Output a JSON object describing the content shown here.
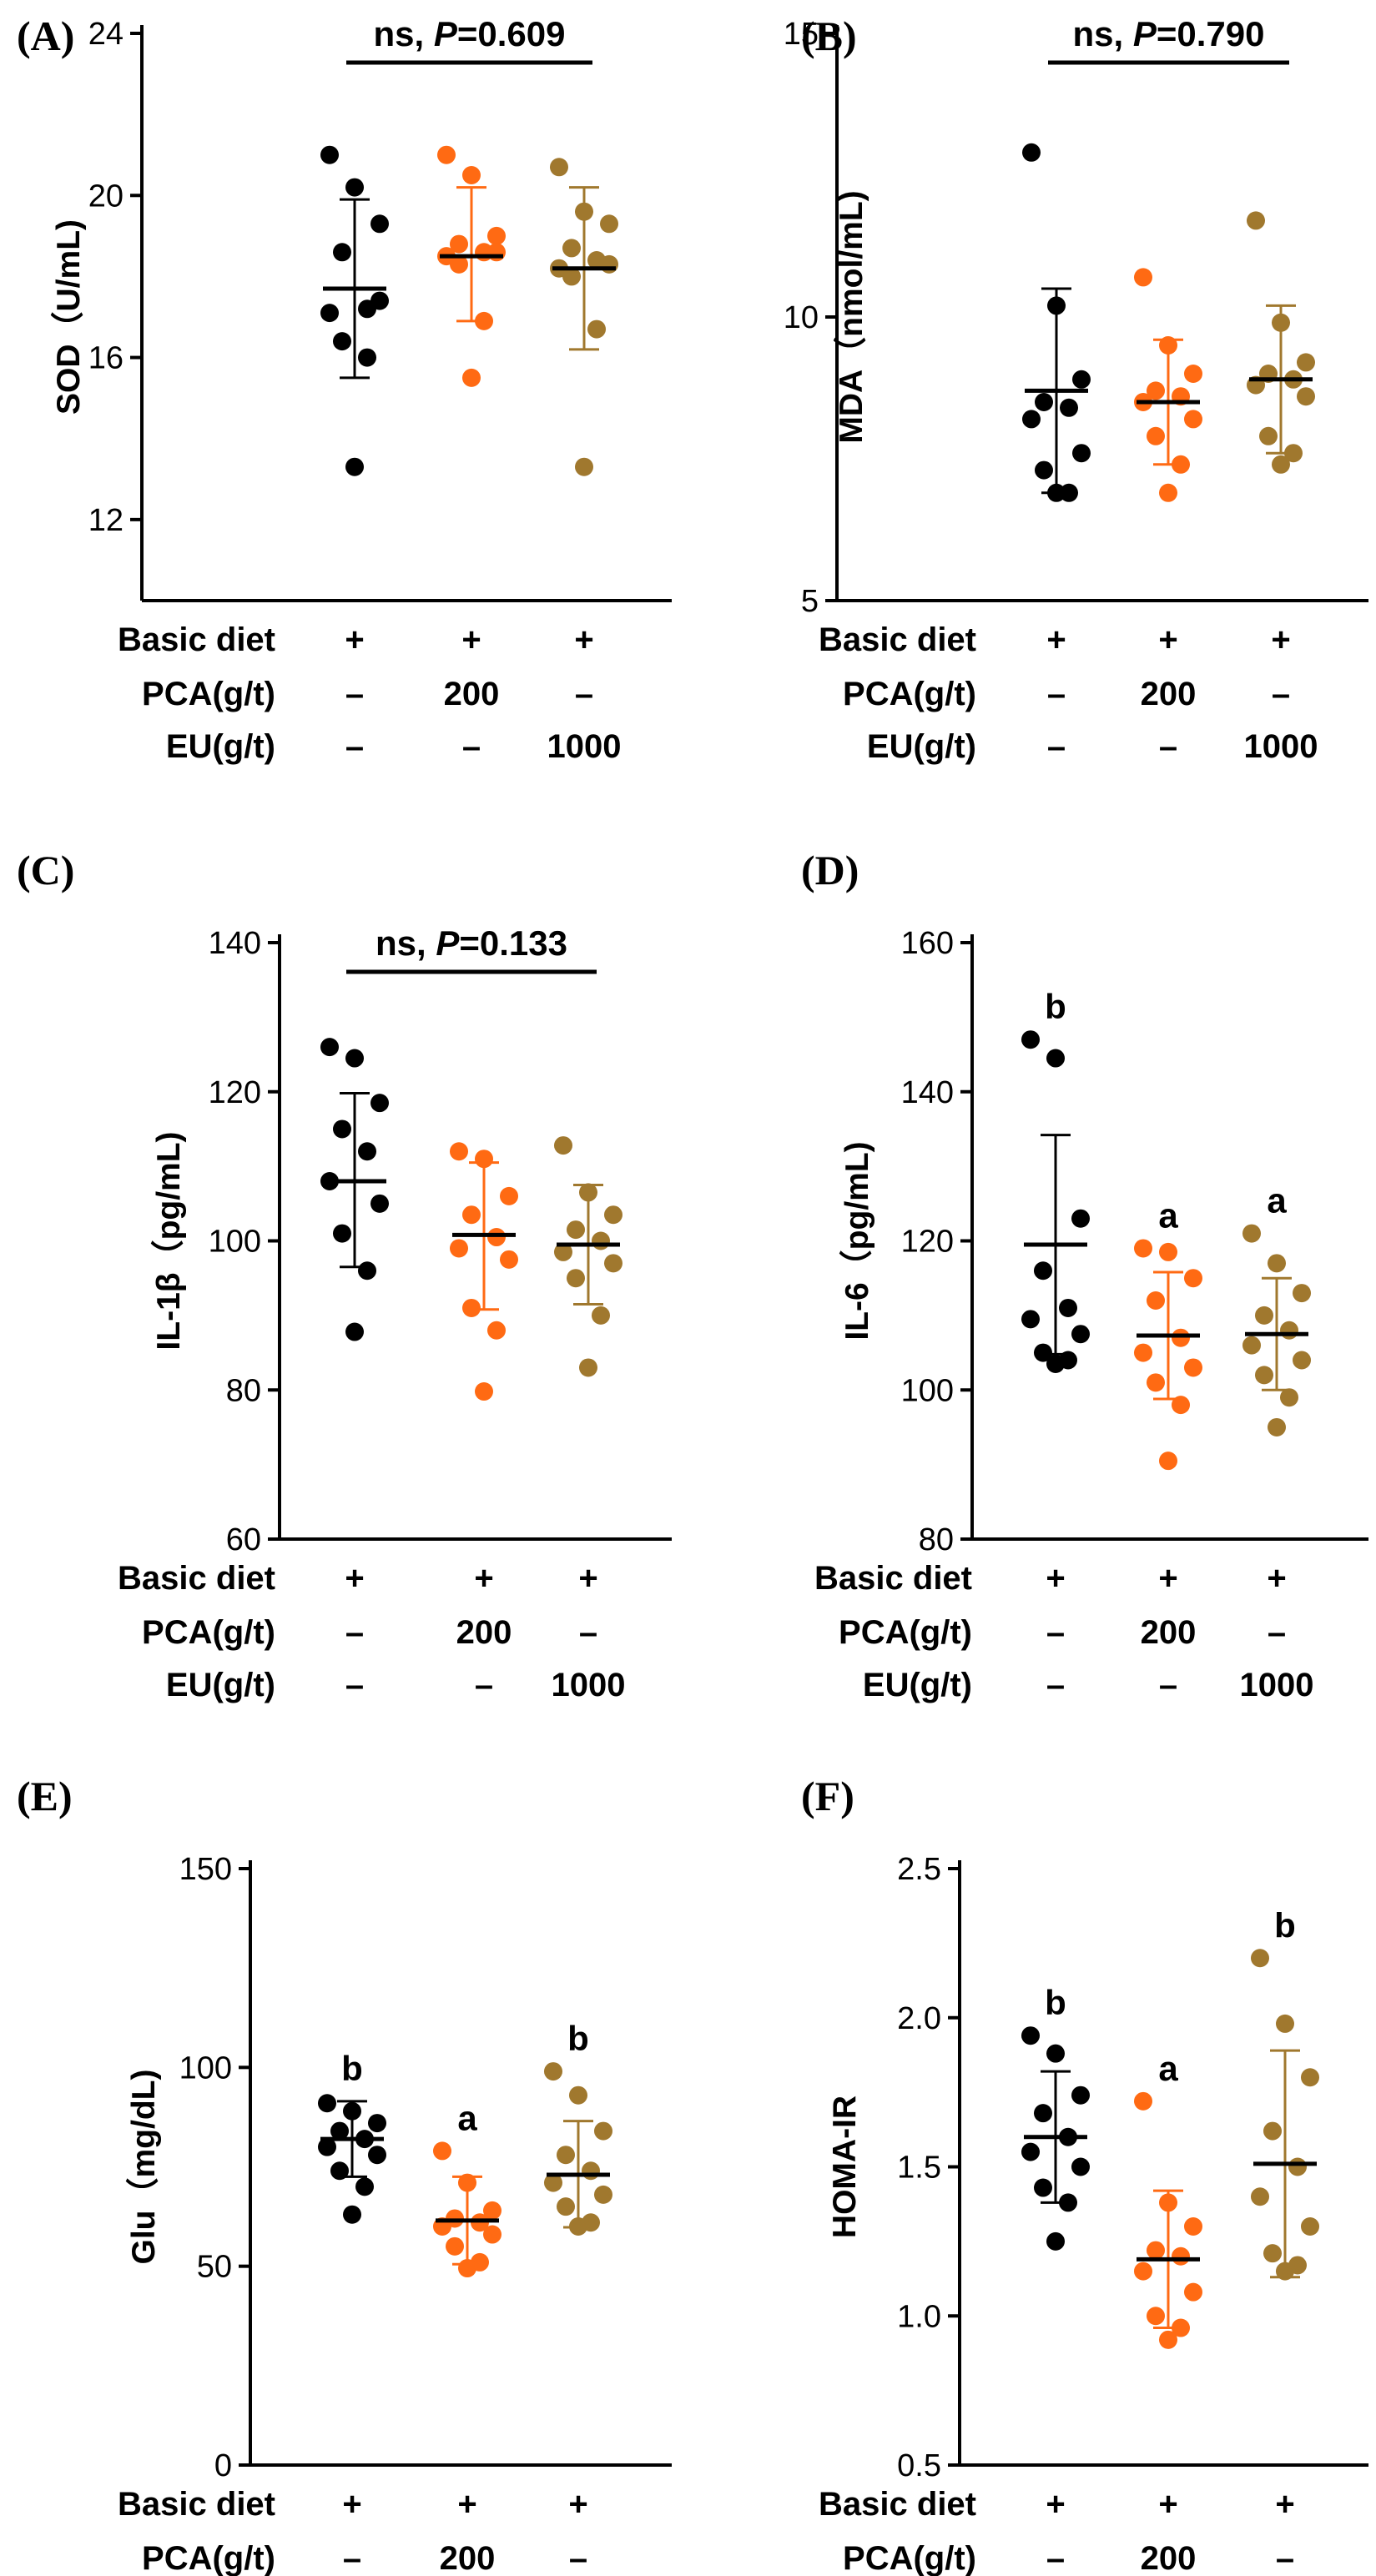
{
  "group_colors": [
    "#000000",
    "#ff6a13",
    "#a0782e"
  ],
  "treatment_table": {
    "rows": [
      {
        "label": "Basic diet",
        "cells": [
          "+",
          "+",
          "+"
        ]
      },
      {
        "label": "PCA(g/t)",
        "cells": [
          "–",
          "200",
          "–"
        ]
      },
      {
        "label": "EU(g/t)",
        "cells": [
          "–",
          "–",
          "1000"
        ]
      }
    ]
  },
  "chart_data": [
    {
      "panel": "(A)",
      "type": "scatter",
      "ylabel": "SOD（U/mL)",
      "ylim": [
        10,
        24
      ],
      "yticks": [
        12,
        16,
        20,
        24
      ],
      "significance": {
        "text": "ns, ",
        "p_label": "P",
        "p_value": "=0.609"
      },
      "letters": [
        "",
        "",
        ""
      ],
      "series": [
        {
          "mean": 17.7,
          "sd_low": 15.5,
          "sd_high": 19.9,
          "points": [
            21.0,
            20.2,
            19.3,
            18.6,
            17.2,
            17.1,
            17.4,
            16.4,
            16.0,
            13.3
          ]
        },
        {
          "mean": 18.5,
          "sd_low": 16.9,
          "sd_high": 20.2,
          "points": [
            21.0,
            20.5,
            19.0,
            18.8,
            18.6,
            18.5,
            18.6,
            18.3,
            16.9,
            15.5
          ]
        },
        {
          "mean": 18.2,
          "sd_low": 16.2,
          "sd_high": 20.2,
          "points": [
            20.7,
            19.6,
            19.3,
            18.7,
            18.4,
            18.2,
            18.3,
            18.0,
            16.7,
            13.3
          ]
        }
      ]
    },
    {
      "panel": "(B)",
      "type": "scatter",
      "ylabel": "MDA（nmol/mL)",
      "ylim": [
        5,
        15
      ],
      "yticks": [
        5,
        10,
        15
      ],
      "significance": {
        "text": "ns, ",
        "p_label": "P",
        "p_value": "=0.790"
      },
      "letters": [
        "",
        "",
        ""
      ],
      "series": [
        {
          "mean": 8.7,
          "sd_low": 6.9,
          "sd_high": 10.5,
          "points": [
            12.9,
            10.2,
            8.9,
            8.5,
            8.4,
            8.2,
            7.6,
            7.3,
            6.9,
            6.9
          ]
        },
        {
          "mean": 8.5,
          "sd_low": 7.4,
          "sd_high": 9.6,
          "points": [
            10.7,
            9.5,
            9.0,
            8.7,
            8.6,
            8.5,
            8.2,
            7.9,
            7.4,
            6.9
          ]
        },
        {
          "mean": 8.9,
          "sd_low": 7.6,
          "sd_high": 10.2,
          "points": [
            11.7,
            9.9,
            9.2,
            9.0,
            8.9,
            8.8,
            8.6,
            7.9,
            7.6,
            7.4
          ]
        }
      ]
    },
    {
      "panel": "(C)",
      "type": "scatter",
      "ylabel": "IL-1β（pg/mL)",
      "ylim": [
        60,
        140
      ],
      "yticks": [
        60,
        80,
        100,
        120,
        140
      ],
      "significance": {
        "text": "ns, ",
        "p_label": "P",
        "p_value": "=0.133"
      },
      "letters": [
        "",
        "",
        ""
      ],
      "series": [
        {
          "mean": 108,
          "sd_low": 96.5,
          "sd_high": 119.8,
          "points": [
            126,
            124.5,
            118.5,
            115,
            112,
            108,
            105,
            101,
            96,
            87.8
          ]
        },
        {
          "mean": 100.8,
          "sd_low": 90.8,
          "sd_high": 110.5,
          "points": [
            112,
            111,
            106,
            103.5,
            100.5,
            99,
            97.5,
            91,
            88,
            79.8
          ]
        },
        {
          "mean": 99.5,
          "sd_low": 91.5,
          "sd_high": 107.5,
          "points": [
            112.8,
            106.5,
            103.5,
            101.5,
            100,
            98.5,
            97,
            95,
            90,
            83
          ]
        }
      ]
    },
    {
      "panel": "(D)",
      "type": "scatter",
      "ylabel": "IL-6（pg/mL)",
      "ylim": [
        80,
        160
      ],
      "yticks": [
        80,
        100,
        120,
        140,
        160
      ],
      "significance": null,
      "letters": [
        "b",
        "a",
        "a"
      ],
      "series": [
        {
          "mean": 119.5,
          "sd_low": 104.8,
          "sd_high": 134.2,
          "points": [
            147,
            144.5,
            123,
            116,
            111,
            109.5,
            107.5,
            105,
            104,
            103.5
          ]
        },
        {
          "mean": 107.3,
          "sd_low": 98.8,
          "sd_high": 115.8,
          "points": [
            119,
            118.5,
            115,
            112,
            107,
            105,
            103,
            101,
            98,
            90.5
          ]
        },
        {
          "mean": 107.5,
          "sd_low": 100,
          "sd_high": 115,
          "points": [
            121,
            117,
            113,
            110,
            108,
            106,
            104,
            102,
            99,
            95
          ]
        }
      ]
    },
    {
      "panel": "(E)",
      "type": "scatter",
      "ylabel": "Glu（mg/dL)",
      "ylim": [
        0,
        150
      ],
      "yticks": [
        0,
        50,
        100,
        150
      ],
      "significance": null,
      "letters": [
        "b",
        "a",
        "b"
      ],
      "series": [
        {
          "mean": 82,
          "sd_low": 72.5,
          "sd_high": 91.5,
          "points": [
            91,
            89,
            86,
            84,
            82,
            80,
            78,
            74,
            70,
            63
          ]
        },
        {
          "mean": 61.5,
          "sd_low": 50.5,
          "sd_high": 72.5,
          "points": [
            79,
            71,
            64,
            62,
            61,
            60,
            58,
            55,
            51,
            49.5
          ]
        },
        {
          "mean": 73,
          "sd_low": 59.8,
          "sd_high": 86.5,
          "points": [
            99,
            93,
            84,
            78,
            74,
            71,
            68,
            65,
            61,
            60
          ]
        }
      ]
    },
    {
      "panel": "(F)",
      "type": "scatter",
      "ylabel": "HOMA-IR",
      "ylim": [
        0.5,
        2.5
      ],
      "yticks": [
        0.5,
        1.0,
        1.5,
        2.0,
        2.5
      ],
      "significance": null,
      "letters": [
        "b",
        "a",
        "b"
      ],
      "series": [
        {
          "mean": 1.6,
          "sd_low": 1.38,
          "sd_high": 1.82,
          "points": [
            1.94,
            1.88,
            1.74,
            1.68,
            1.6,
            1.55,
            1.5,
            1.43,
            1.38,
            1.25
          ]
        },
        {
          "mean": 1.19,
          "sd_low": 0.96,
          "sd_high": 1.42,
          "points": [
            1.72,
            1.38,
            1.3,
            1.22,
            1.2,
            1.15,
            1.08,
            1.0,
            0.96,
            0.92
          ]
        },
        {
          "mean": 1.51,
          "sd_low": 1.13,
          "sd_high": 1.89,
          "points": [
            2.2,
            1.98,
            1.8,
            1.62,
            1.5,
            1.4,
            1.3,
            1.21,
            1.17,
            1.15
          ]
        }
      ]
    }
  ]
}
